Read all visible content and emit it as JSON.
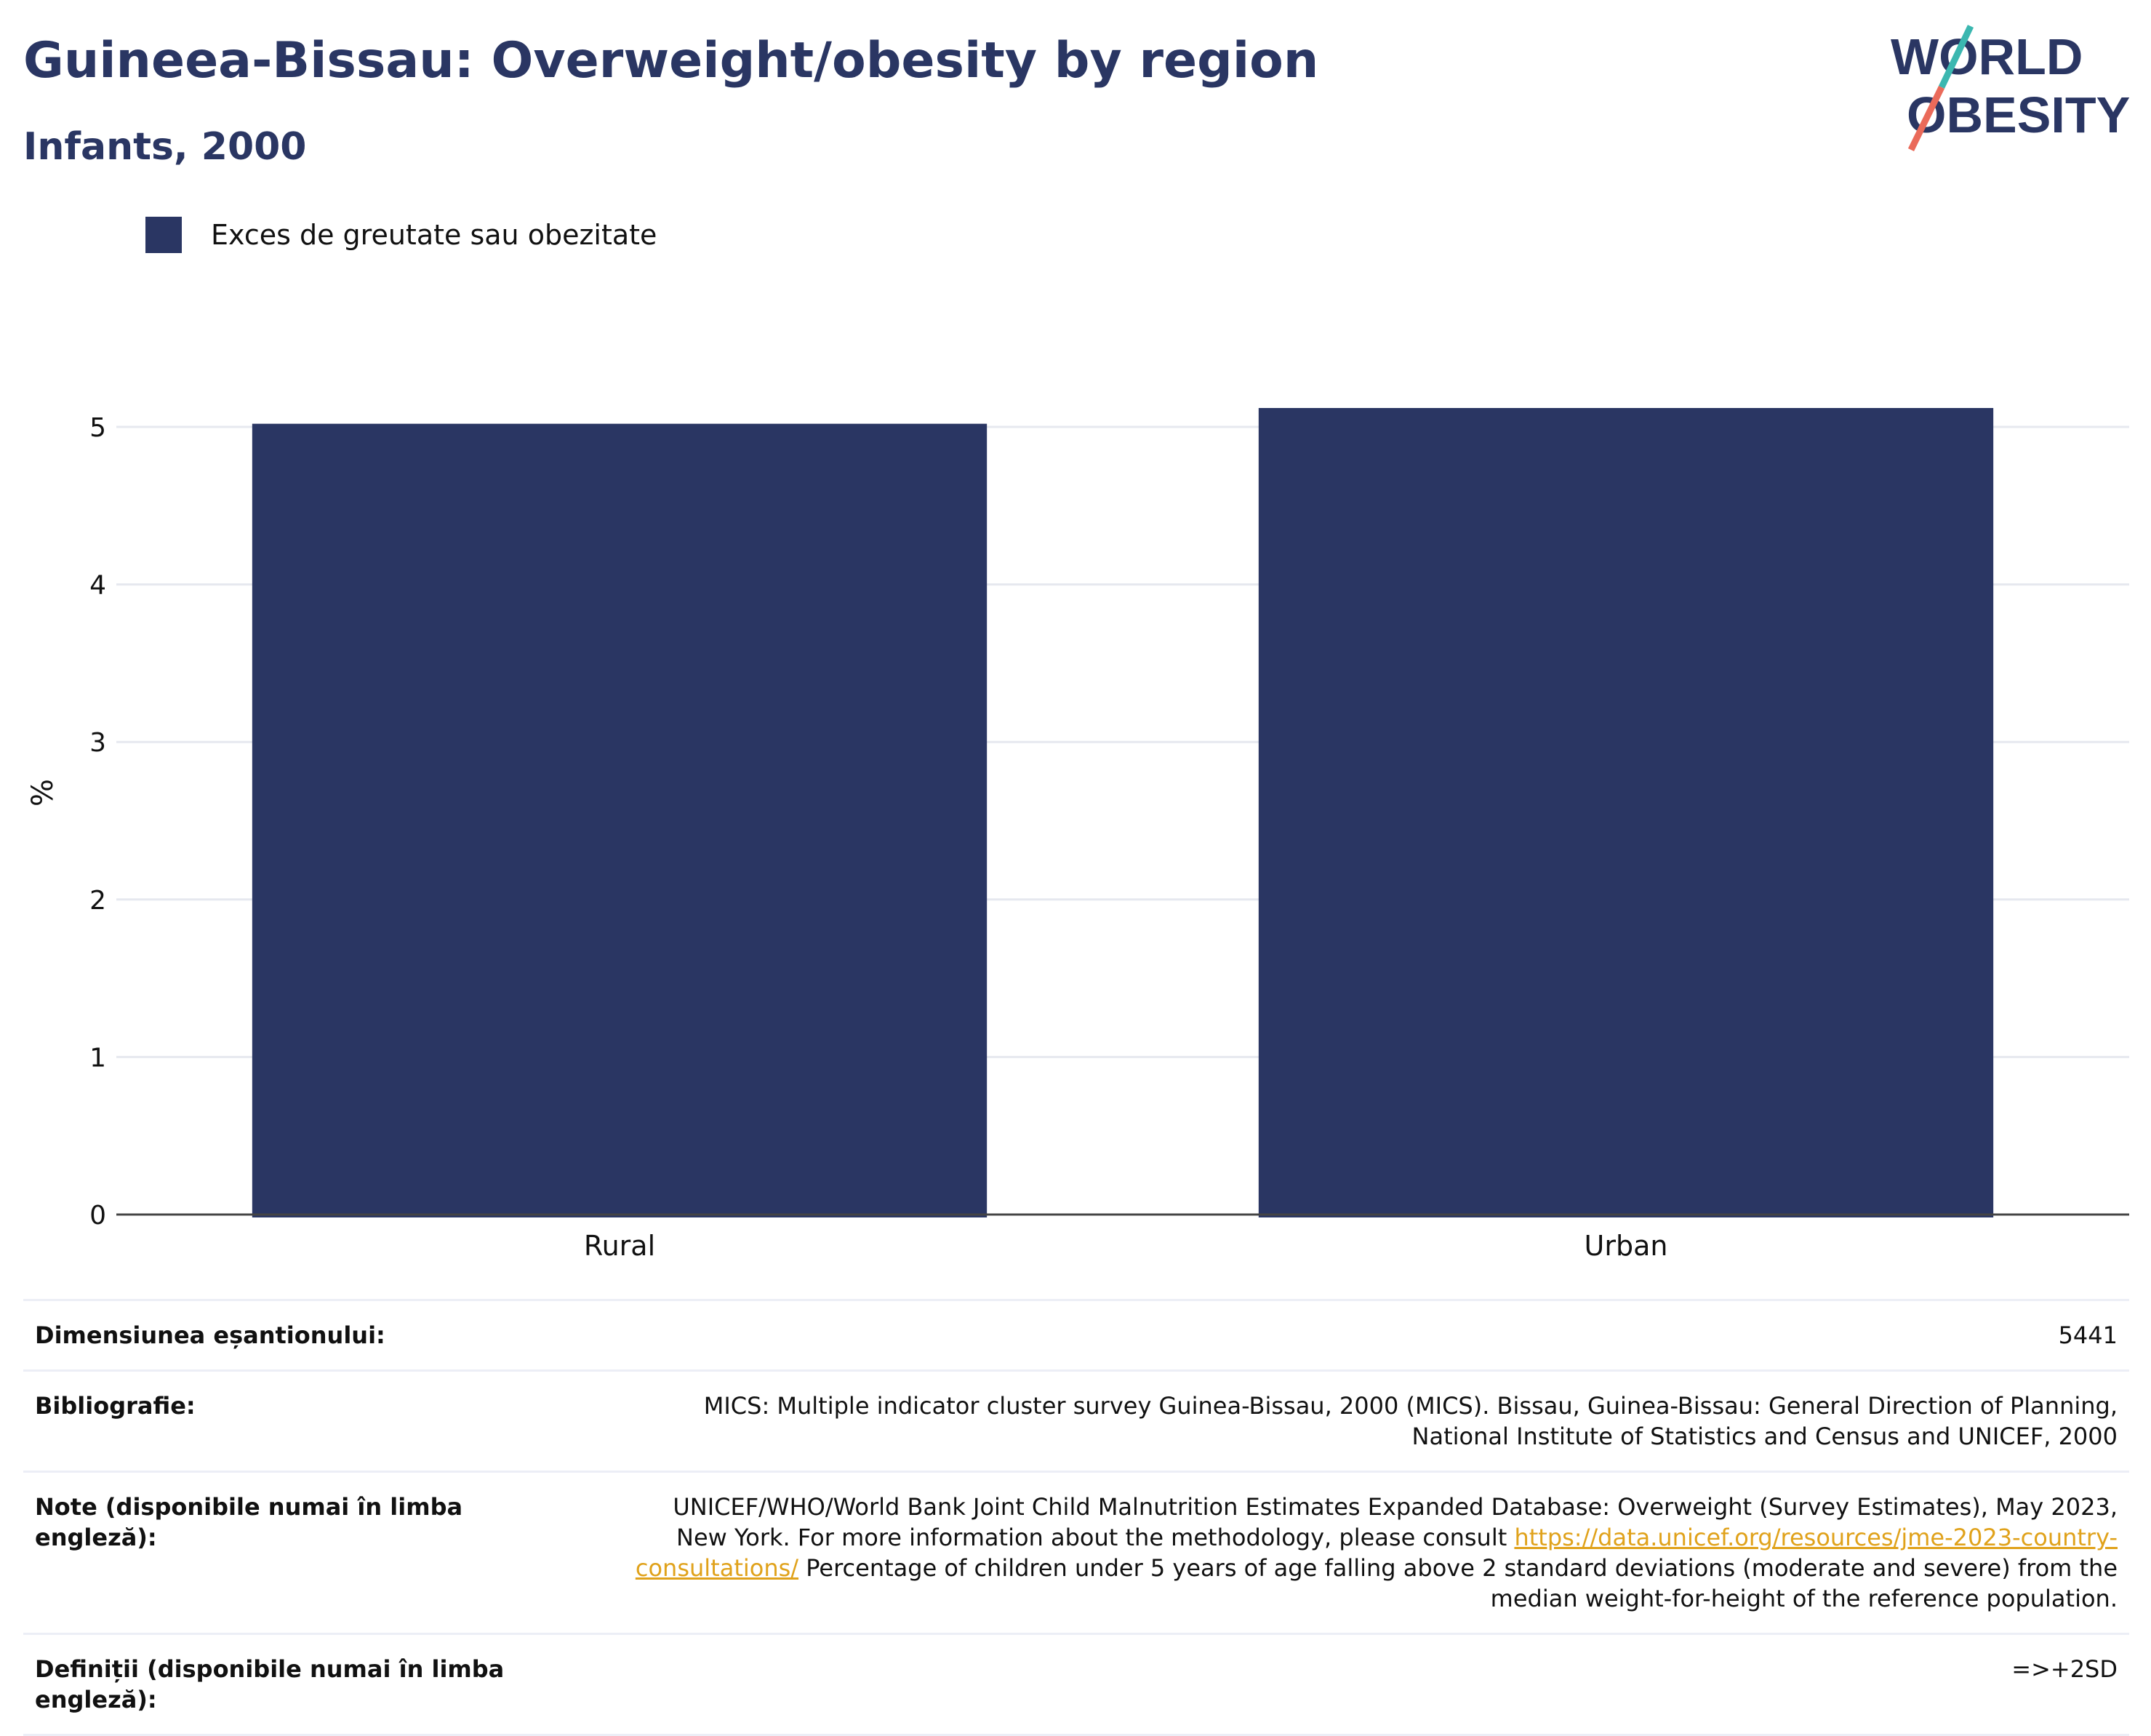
{
  "header": {
    "title": "Guineea-Bissau: Overweight/obesity by region",
    "subtitle": "Infants, 2000"
  },
  "logo": {
    "line1": "WORLD",
    "line2": "OBESITY"
  },
  "legend": {
    "label": "Exces de greutate sau obezitate",
    "color": "#2a3663"
  },
  "chart_data": {
    "type": "bar",
    "categories": [
      "Rural",
      "Urban"
    ],
    "series": [
      {
        "name": "Exces de greutate sau obezitate",
        "values": [
          5.02,
          5.12
        ],
        "color": "#2a3663"
      }
    ],
    "xlabel": "",
    "ylabel": "%",
    "ylim": [
      0,
      5.5
    ],
    "yticks": [
      0,
      1,
      2,
      3,
      4,
      5
    ],
    "grid": true,
    "legend_position": "top-left"
  },
  "meta": {
    "sample_size_label": "Dimensiunea eșantionului:",
    "sample_size_value": "5441",
    "bibliography_label": "Bibliografie:",
    "bibliography_value": "MICS: Multiple indicator cluster survey Guinea-Bissau, 2000 (MICS). Bissau, Guinea-Bissau: General Direction of Planning, National Institute of Statistics and Census and UNICEF, 2000",
    "notes_label": "Note (disponibile numai în limba engleză):",
    "notes_text_before": "UNICEF/WHO/World Bank Joint Child Malnutrition Estimates Expanded Database: Overweight (Survey Estimates), May 2023, New York. For more information about the methodology, please consult ",
    "notes_link": "https://data.unicef.org/resources/jme-2023-country-consultations/",
    "notes_text_after": " Percentage of children under 5 years of age falling above 2 standard deviations (moderate and severe) from the median weight-for-height of the reference population.",
    "definitions_label": "Definiții (disponibile numai în limba engleză):",
    "definitions_value": "=>+2SD"
  }
}
